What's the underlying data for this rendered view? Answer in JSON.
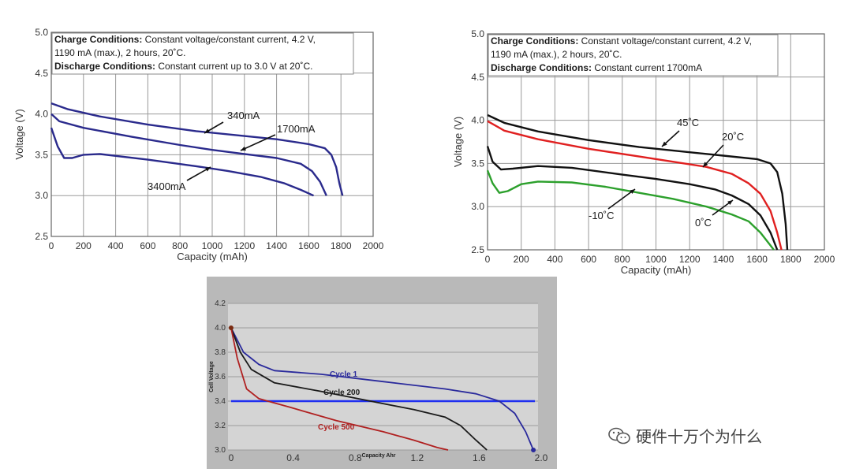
{
  "watermark": "硬件十万个为什么",
  "chart_data": [
    {
      "type": "line",
      "title": "",
      "notes": [
        {
          "bold": "Charge Conditions:",
          "text": " Constant voltage/constant current, 4.2 V,"
        },
        {
          "bold": "",
          "text": "1190 mA (max.), 2 hours, 20˚C."
        },
        {
          "bold": "Discharge Conditions:",
          "text": " Constant current up to 3.0 V at 20˚C."
        }
      ],
      "xlabel": "Capacity (mAh)",
      "ylabel": "Voltage (V)",
      "xlim": [
        0,
        2000
      ],
      "ylim": [
        2.5,
        5.0
      ],
      "xticks": [
        0,
        200,
        400,
        600,
        800,
        1000,
        1200,
        1400,
        1600,
        1800,
        2000
      ],
      "yticks": [
        2.5,
        3.0,
        3.5,
        4.0,
        4.5,
        5.0
      ],
      "line_color": "#2a2a8c",
      "series": [
        {
          "name": "340mA",
          "points": [
            [
              0,
              4.13
            ],
            [
              100,
              4.06
            ],
            [
              300,
              3.97
            ],
            [
              600,
              3.87
            ],
            [
              900,
              3.79
            ],
            [
              1200,
              3.73
            ],
            [
              1400,
              3.69
            ],
            [
              1600,
              3.63
            ],
            [
              1700,
              3.58
            ],
            [
              1740,
              3.5
            ],
            [
              1770,
              3.35
            ],
            [
              1790,
              3.15
            ],
            [
              1810,
              3.0
            ]
          ]
        },
        {
          "name": "1700mA",
          "points": [
            [
              0,
              4.0
            ],
            [
              50,
              3.91
            ],
            [
              200,
              3.83
            ],
            [
              500,
              3.72
            ],
            [
              800,
              3.62
            ],
            [
              1000,
              3.56
            ],
            [
              1200,
              3.51
            ],
            [
              1400,
              3.46
            ],
            [
              1550,
              3.39
            ],
            [
              1620,
              3.3
            ],
            [
              1670,
              3.17
            ],
            [
              1710,
              3.0
            ]
          ]
        },
        {
          "name": "3400mA",
          "points": [
            [
              0,
              3.83
            ],
            [
              40,
              3.6
            ],
            [
              80,
              3.46
            ],
            [
              130,
              3.46
            ],
            [
              200,
              3.5
            ],
            [
              300,
              3.51
            ],
            [
              600,
              3.44
            ],
            [
              900,
              3.36
            ],
            [
              1100,
              3.3
            ],
            [
              1300,
              3.23
            ],
            [
              1450,
              3.15
            ],
            [
              1550,
              3.07
            ],
            [
              1630,
              3.0
            ]
          ]
        }
      ],
      "annotations": [
        "340mA",
        "1700mA",
        "3400mA"
      ]
    },
    {
      "type": "line",
      "title": "",
      "notes": [
        {
          "bold": "Charge Conditions:",
          "text": " Constant voltage/constant current, 4.2 V,"
        },
        {
          "bold": "",
          "text": "1190 mA (max.), 2 hours, 20˚C."
        },
        {
          "bold": "Discharge Conditions:",
          "text": " Constant current 1700mA"
        }
      ],
      "xlabel": "Capacity (mAh)",
      "ylabel": "Voltage (V)",
      "xlim": [
        0,
        2000
      ],
      "ylim": [
        2.5,
        5.0
      ],
      "xticks": [
        0,
        200,
        400,
        600,
        800,
        1000,
        1200,
        1400,
        1600,
        1800,
        2000
      ],
      "yticks": [
        2.5,
        3.0,
        3.5,
        4.0,
        4.5,
        5.0
      ],
      "series": [
        {
          "name": "45˚C",
          "color": "#111111",
          "points": [
            [
              0,
              4.06
            ],
            [
              100,
              3.97
            ],
            [
              300,
              3.87
            ],
            [
              600,
              3.77
            ],
            [
              900,
              3.69
            ],
            [
              1200,
              3.63
            ],
            [
              1400,
              3.59
            ],
            [
              1600,
              3.55
            ],
            [
              1680,
              3.5
            ],
            [
              1720,
              3.4
            ],
            [
              1750,
              3.15
            ],
            [
              1770,
              2.8
            ],
            [
              1780,
              2.5
            ]
          ]
        },
        {
          "name": "20˚C",
          "color": "#e02020",
          "points": [
            [
              0,
              3.99
            ],
            [
              100,
              3.88
            ],
            [
              300,
              3.78
            ],
            [
              600,
              3.67
            ],
            [
              900,
              3.58
            ],
            [
              1100,
              3.52
            ],
            [
              1300,
              3.46
            ],
            [
              1450,
              3.38
            ],
            [
              1550,
              3.27
            ],
            [
              1620,
              3.15
            ],
            [
              1680,
              2.95
            ],
            [
              1720,
              2.7
            ],
            [
              1745,
              2.5
            ]
          ]
        },
        {
          "name": "0˚C",
          "color": "#111111",
          "points": [
            [
              0,
              3.7
            ],
            [
              30,
              3.52
            ],
            [
              80,
              3.43
            ],
            [
              150,
              3.44
            ],
            [
              300,
              3.47
            ],
            [
              500,
              3.45
            ],
            [
              800,
              3.37
            ],
            [
              1000,
              3.32
            ],
            [
              1200,
              3.26
            ],
            [
              1350,
              3.2
            ],
            [
              1450,
              3.13
            ],
            [
              1550,
              3.03
            ],
            [
              1620,
              2.9
            ],
            [
              1680,
              2.7
            ],
            [
              1720,
              2.5
            ]
          ]
        },
        {
          "name": "-10˚C",
          "color": "#2ca02c",
          "points": [
            [
              0,
              3.42
            ],
            [
              30,
              3.27
            ],
            [
              70,
              3.16
            ],
            [
              120,
              3.18
            ],
            [
              200,
              3.26
            ],
            [
              300,
              3.29
            ],
            [
              500,
              3.28
            ],
            [
              700,
              3.23
            ],
            [
              900,
              3.16
            ],
            [
              1100,
              3.09
            ],
            [
              1300,
              3.0
            ],
            [
              1450,
              2.91
            ],
            [
              1550,
              2.83
            ],
            [
              1620,
              2.7
            ],
            [
              1680,
              2.55
            ],
            [
              1700,
              2.5
            ]
          ]
        }
      ],
      "annotations": [
        "45˚C",
        "20˚C",
        "0˚C",
        "-10˚C"
      ]
    },
    {
      "type": "line",
      "title": "",
      "xlabel": "Capacity Ahr",
      "ylabel": "Cell Voltage",
      "xlim": [
        0,
        2.0
      ],
      "ylim": [
        3.0,
        4.2
      ],
      "xticks": [
        0,
        0.4,
        0.8,
        1.2,
        1.6,
        2.0
      ],
      "xtick_labels": [
        "0",
        "0.4",
        "0.8",
        "1.2",
        "1.6",
        "2.0"
      ],
      "yticks": [
        3.0,
        3.2,
        3.4,
        3.6,
        3.8,
        4.0,
        4.2
      ],
      "ytick_labels": [
        "3.0",
        "3.2",
        "3.4",
        "3.6",
        "3.8",
        "4.0",
        "4.2"
      ],
      "series": [
        {
          "name": "Cycle 1",
          "color": "#2a2a9c",
          "points": [
            [
              0.02,
              4.0
            ],
            [
              0.1,
              3.8
            ],
            [
              0.2,
              3.7
            ],
            [
              0.3,
              3.65
            ],
            [
              0.6,
              3.62
            ],
            [
              1.0,
              3.56
            ],
            [
              1.4,
              3.5
            ],
            [
              1.6,
              3.46
            ],
            [
              1.75,
              3.4
            ],
            [
              1.85,
              3.3
            ],
            [
              1.92,
              3.15
            ],
            [
              1.97,
              3.0
            ]
          ]
        },
        {
          "name": "Cycle 200",
          "color": "#1a1a1a",
          "points": [
            [
              0.02,
              4.0
            ],
            [
              0.08,
              3.8
            ],
            [
              0.15,
              3.66
            ],
            [
              0.3,
              3.55
            ],
            [
              0.6,
              3.48
            ],
            [
              1.0,
              3.38
            ],
            [
              1.2,
              3.33
            ],
            [
              1.4,
              3.27
            ],
            [
              1.5,
              3.2
            ],
            [
              1.6,
              3.08
            ],
            [
              1.67,
              3.0
            ]
          ]
        },
        {
          "name": "Cycle 500",
          "color": "#b02020",
          "points": [
            [
              0.02,
              4.0
            ],
            [
              0.06,
              3.75
            ],
            [
              0.12,
              3.5
            ],
            [
              0.2,
              3.42
            ],
            [
              0.4,
              3.35
            ],
            [
              0.7,
              3.24
            ],
            [
              1.0,
              3.15
            ],
            [
              1.2,
              3.08
            ],
            [
              1.35,
              3.02
            ],
            [
              1.42,
              3.0
            ]
          ]
        }
      ],
      "reference_line": {
        "value": 3.4,
        "color": "#1f2ff0"
      },
      "annotations": [
        "Cycle 1",
        "Cycle 200",
        "Cycle 500"
      ]
    }
  ]
}
